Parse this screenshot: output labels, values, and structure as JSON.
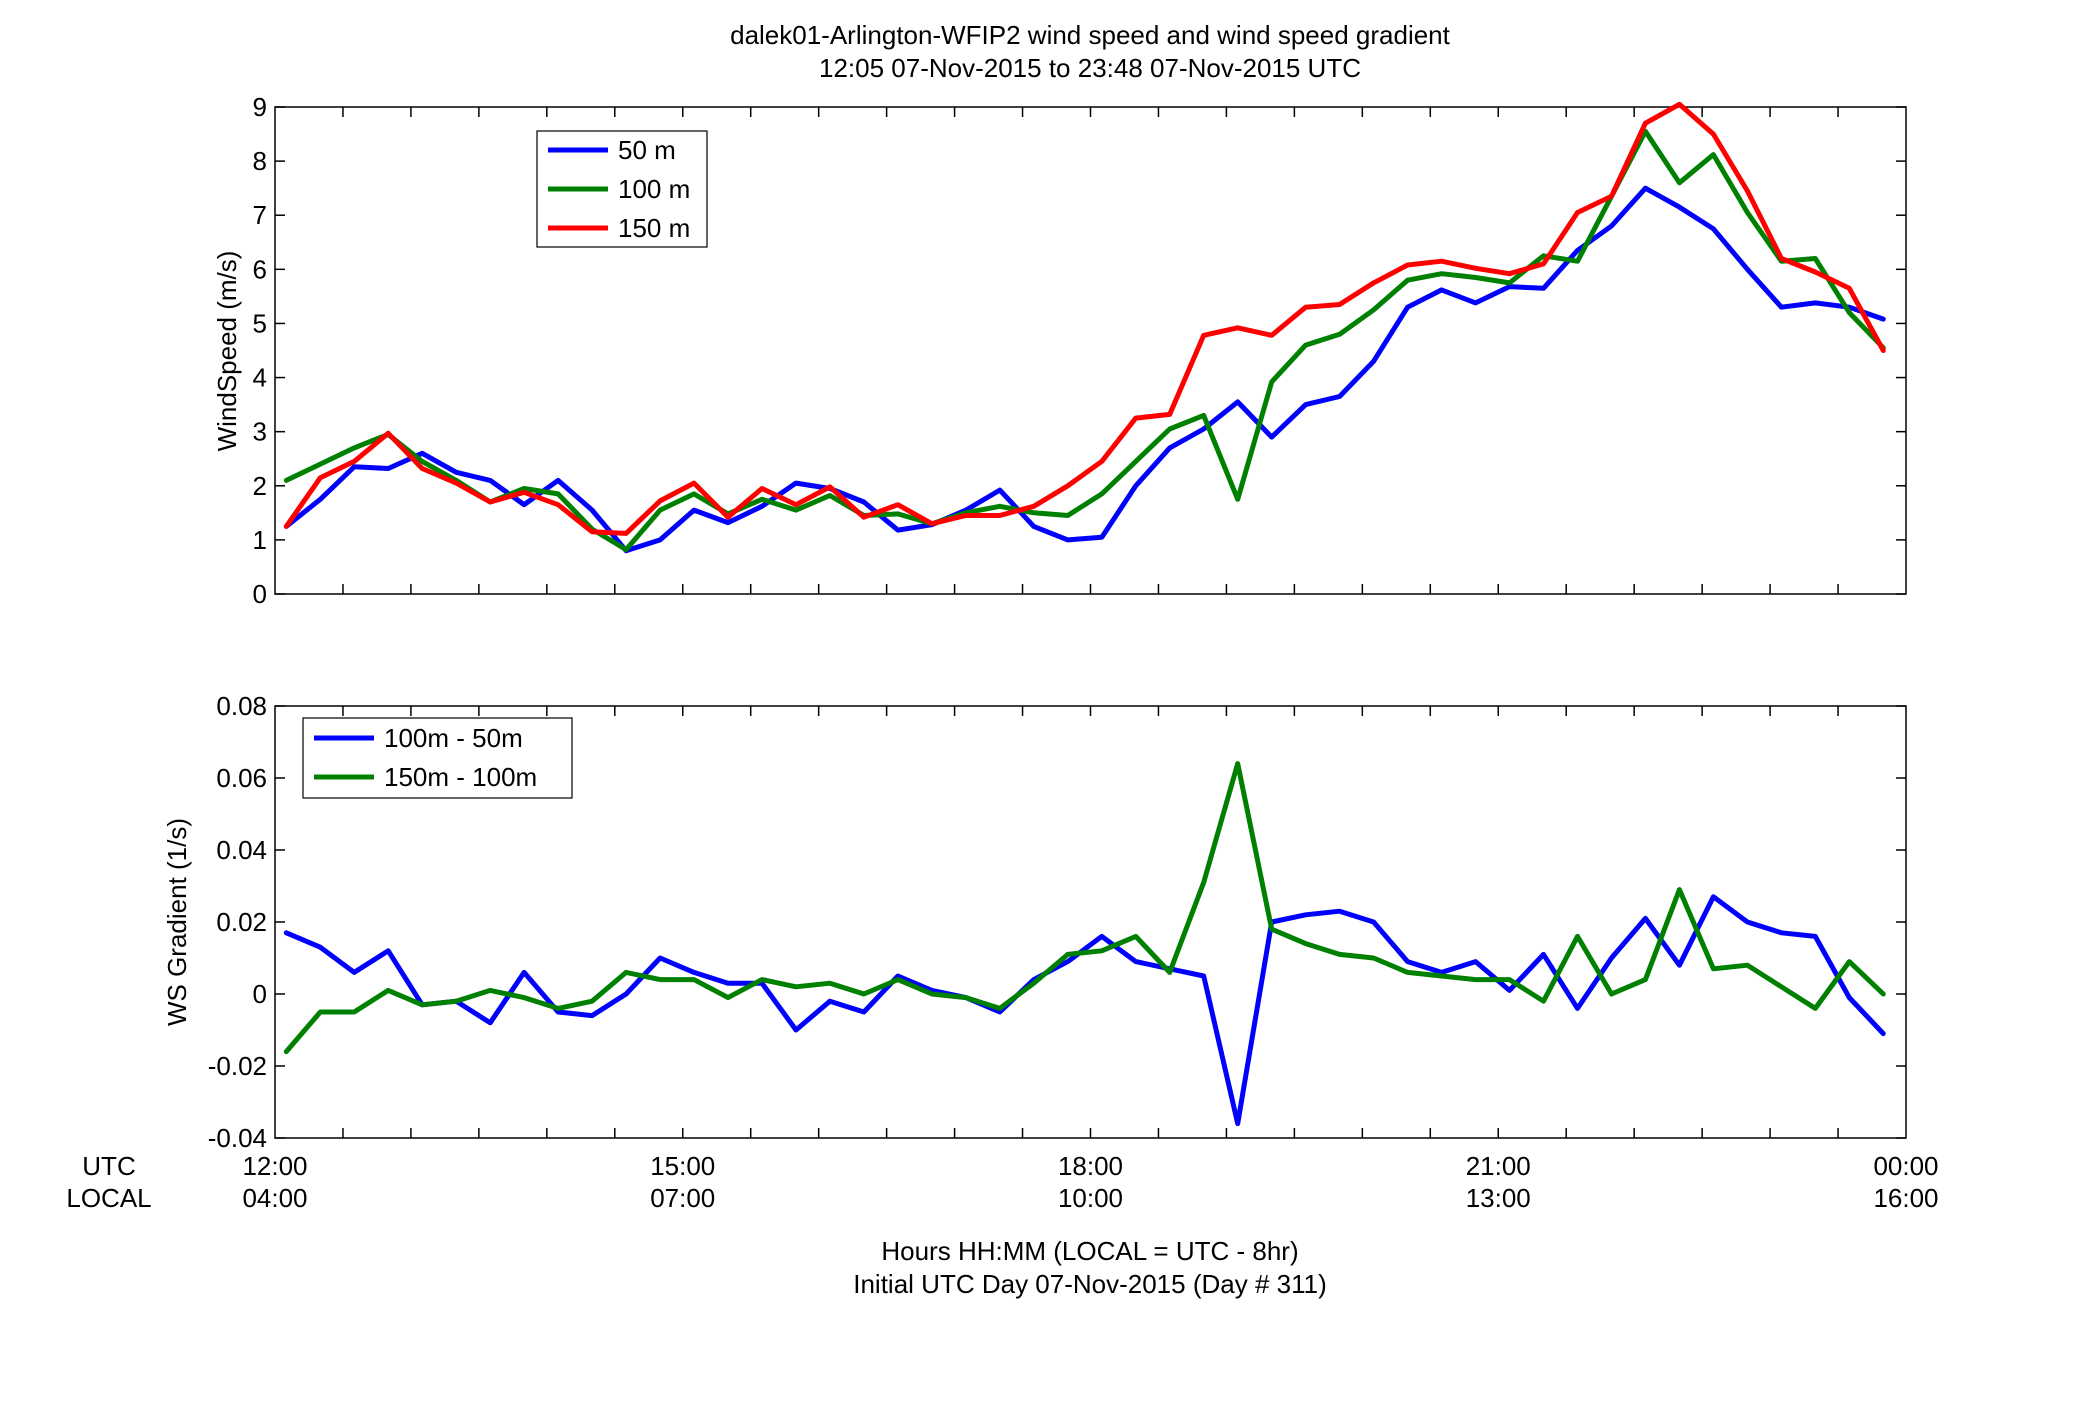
{
  "figure": {
    "title_line1": "dalek01-Arlington-WFIP2  wind speed and wind speed gradient",
    "title_line2": "12:05 07-Nov-2015 to 23:48 07-Nov-2015  UTC",
    "row_label_utc": "UTC",
    "row_label_local": "LOCAL",
    "xlabel_line1": "Hours HH:MM  (LOCAL = UTC - 8hr)",
    "xlabel_line2": "Initial UTC Day 07-Nov-2015 (Day # 311)",
    "x_ticks_utc": [
      "12:00",
      "15:00",
      "18:00",
      "21:00",
      "00:00"
    ],
    "x_ticks_local": [
      "04:00",
      "07:00",
      "10:00",
      "13:00",
      "16:00"
    ]
  },
  "chart_data": [
    {
      "type": "line",
      "ylabel": "WindSpeed (m/s)",
      "xlim": [
        12,
        24
      ],
      "ylim": [
        0,
        9
      ],
      "yticks": [
        0,
        1,
        2,
        3,
        4,
        5,
        6,
        7,
        8,
        9
      ],
      "grid": false,
      "legend_position": "top-left",
      "x_units": "hours UTC",
      "x": [
        12.083,
        12.333,
        12.583,
        12.833,
        13.083,
        13.333,
        13.583,
        13.833,
        14.083,
        14.333,
        14.583,
        14.833,
        15.083,
        15.333,
        15.583,
        15.833,
        16.083,
        16.333,
        16.583,
        16.833,
        17.083,
        17.333,
        17.583,
        17.833,
        18.083,
        18.333,
        18.583,
        18.833,
        19.083,
        19.333,
        19.583,
        19.833,
        20.083,
        20.333,
        20.583,
        20.833,
        21.083,
        21.333,
        21.583,
        21.833,
        22.083,
        22.333,
        22.583,
        22.833,
        23.083,
        23.333,
        23.583,
        23.833
      ],
      "series": [
        {
          "name": "50 m",
          "color": "#0000ff",
          "values": [
            1.25,
            1.75,
            2.35,
            2.32,
            2.6,
            2.25,
            2.1,
            1.65,
            2.1,
            1.55,
            0.8,
            1.0,
            1.55,
            1.32,
            1.62,
            2.05,
            1.95,
            1.7,
            1.18,
            1.28,
            1.55,
            1.92,
            1.25,
            1.0,
            1.05,
            2.0,
            2.7,
            3.05,
            3.55,
            2.9,
            3.5,
            3.65,
            4.3,
            5.3,
            5.62,
            5.38,
            5.68,
            5.65,
            6.35,
            6.8,
            7.5,
            7.15,
            6.75,
            6.0,
            5.3,
            5.38,
            5.3,
            5.08
          ]
        },
        {
          "name": "100 m",
          "color": "#008000",
          "values": [
            2.1,
            2.4,
            2.7,
            2.95,
            2.45,
            2.1,
            1.7,
            1.95,
            1.85,
            1.2,
            0.82,
            1.55,
            1.85,
            1.48,
            1.75,
            1.55,
            1.82,
            1.45,
            1.48,
            1.3,
            1.5,
            1.62,
            1.5,
            1.45,
            1.85,
            2.45,
            3.05,
            3.3,
            1.75,
            3.92,
            4.6,
            4.8,
            5.25,
            5.8,
            5.92,
            5.85,
            5.75,
            6.25,
            6.15,
            7.35,
            8.55,
            7.6,
            8.12,
            7.05,
            6.15,
            6.2,
            5.2,
            4.55
          ]
        },
        {
          "name": "150 m",
          "color": "#ff0000",
          "values": [
            1.25,
            2.15,
            2.45,
            2.97,
            2.32,
            2.05,
            1.7,
            1.88,
            1.65,
            1.15,
            1.12,
            1.72,
            2.05,
            1.42,
            1.95,
            1.65,
            1.98,
            1.42,
            1.65,
            1.3,
            1.45,
            1.45,
            1.62,
            2.0,
            2.45,
            3.25,
            3.32,
            4.78,
            4.92,
            4.78,
            5.3,
            5.35,
            5.75,
            6.08,
            6.15,
            6.02,
            5.92,
            6.1,
            7.05,
            7.35,
            8.7,
            9.05,
            8.5,
            7.45,
            6.2,
            5.95,
            5.65,
            4.5
          ]
        }
      ]
    },
    {
      "type": "line",
      "ylabel": "WS Gradient (1/s)",
      "xlim": [
        12,
        24
      ],
      "ylim": [
        -0.04,
        0.08
      ],
      "yticks": [
        -0.04,
        -0.02,
        0,
        0.02,
        0.04,
        0.06,
        0.08
      ],
      "grid": false,
      "legend_position": "top-left",
      "x_units": "hours UTC",
      "x": [
        12.083,
        12.333,
        12.583,
        12.833,
        13.083,
        13.333,
        13.583,
        13.833,
        14.083,
        14.333,
        14.583,
        14.833,
        15.083,
        15.333,
        15.583,
        15.833,
        16.083,
        16.333,
        16.583,
        16.833,
        17.083,
        17.333,
        17.583,
        17.833,
        18.083,
        18.333,
        18.583,
        18.833,
        19.083,
        19.333,
        19.583,
        19.833,
        20.083,
        20.333,
        20.583,
        20.833,
        21.083,
        21.333,
        21.583,
        21.833,
        22.083,
        22.333,
        22.583,
        22.833,
        23.083,
        23.333,
        23.583,
        23.833
      ],
      "series": [
        {
          "name": "100m - 50m",
          "color": "#0000ff",
          "values": [
            0.017,
            0.013,
            0.006,
            0.012,
            -0.003,
            -0.002,
            -0.008,
            0.006,
            -0.005,
            -0.006,
            0.0,
            0.01,
            0.006,
            0.003,
            0.003,
            -0.01,
            -0.002,
            -0.005,
            0.005,
            0.001,
            -0.001,
            -0.005,
            0.004,
            0.009,
            0.016,
            0.009,
            0.007,
            0.005,
            -0.036,
            0.02,
            0.022,
            0.023,
            0.02,
            0.009,
            0.006,
            0.009,
            0.001,
            0.011,
            -0.004,
            0.01,
            0.021,
            0.008,
            0.027,
            0.02,
            0.017,
            0.016,
            -0.001,
            -0.011
          ]
        },
        {
          "name": "150m - 100m",
          "color": "#008000",
          "values": [
            -0.016,
            -0.005,
            -0.005,
            0.001,
            -0.003,
            -0.002,
            0.001,
            -0.001,
            -0.004,
            -0.002,
            0.006,
            0.004,
            0.004,
            -0.001,
            0.004,
            0.002,
            0.003,
            0.0,
            0.004,
            0.0,
            -0.001,
            -0.004,
            0.003,
            0.011,
            0.012,
            0.016,
            0.006,
            0.031,
            0.064,
            0.018,
            0.014,
            0.011,
            0.01,
            0.006,
            0.005,
            0.004,
            0.004,
            -0.002,
            0.016,
            0.0,
            0.004,
            0.029,
            0.007,
            0.008,
            0.002,
            -0.004,
            0.009,
            0.0
          ]
        }
      ]
    }
  ]
}
